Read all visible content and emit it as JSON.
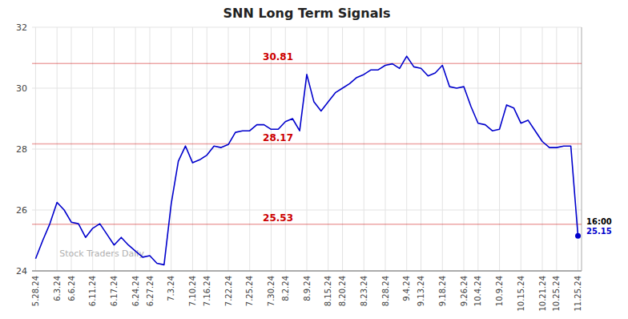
{
  "chart_data": {
    "type": "line",
    "title": "SNN Long Term Signals",
    "watermark": "Stock Traders Daily",
    "categories": [
      "5.28.24",
      null,
      null,
      "6.3.24",
      null,
      "6.6.24",
      null,
      null,
      "6.11.24",
      null,
      null,
      "6.17.24",
      null,
      null,
      "6.24.24",
      null,
      "6.27.24",
      null,
      null,
      "7.3.24",
      null,
      null,
      "7.10.24",
      null,
      "7.16.24",
      null,
      null,
      "7.22.24",
      null,
      null,
      "7.25.24",
      null,
      null,
      "7.30.24",
      null,
      "8.2.24",
      null,
      null,
      "8.9.24",
      null,
      null,
      "8.15.24",
      null,
      "8.20.24",
      null,
      null,
      "8.23.24",
      null,
      null,
      "8.28.24",
      null,
      null,
      "9.4.24",
      null,
      "9.13.24",
      null,
      null,
      "9.18.24",
      null,
      null,
      "9.26.24",
      null,
      "10.4.24",
      null,
      null,
      "10.9.24",
      null,
      null,
      "10.15.24",
      null,
      null,
      "10.21.24",
      null,
      "10.25.24",
      null,
      null,
      "11.25.24"
    ],
    "values": [
      24.4,
      25.0,
      25.55,
      26.25,
      26.0,
      25.6,
      25.55,
      25.1,
      25.4,
      25.55,
      25.2,
      24.85,
      25.1,
      24.85,
      24.65,
      24.45,
      24.5,
      24.25,
      24.2,
      26.2,
      27.6,
      28.1,
      27.55,
      27.65,
      27.8,
      28.1,
      28.05,
      28.15,
      28.55,
      28.6,
      28.6,
      28.8,
      28.8,
      28.65,
      28.65,
      28.9,
      29.0,
      28.6,
      30.45,
      29.55,
      29.25,
      29.55,
      29.85,
      30.0,
      30.15,
      30.35,
      30.45,
      30.6,
      30.6,
      30.75,
      30.8,
      30.65,
      31.05,
      30.7,
      30.65,
      30.4,
      30.5,
      30.75,
      30.05,
      30.0,
      30.05,
      29.4,
      28.85,
      28.8,
      28.6,
      28.65,
      29.45,
      29.35,
      28.85,
      28.95,
      28.6,
      28.25,
      28.05,
      28.05,
      28.1,
      28.1,
      25.15
    ],
    "color": "#0000cc",
    "hlines": [
      {
        "value": 30.81,
        "label": "30.81"
      },
      {
        "value": 28.17,
        "label": "28.17"
      },
      {
        "value": 25.53,
        "label": "25.53"
      }
    ],
    "hline_color": "#cc0000",
    "endpoint": {
      "value": 25.15,
      "label": "25.15",
      "note": "16:00"
    },
    "ylim": [
      24,
      32
    ],
    "yticks": [
      24,
      26,
      28,
      30,
      32
    ],
    "grid": true
  }
}
